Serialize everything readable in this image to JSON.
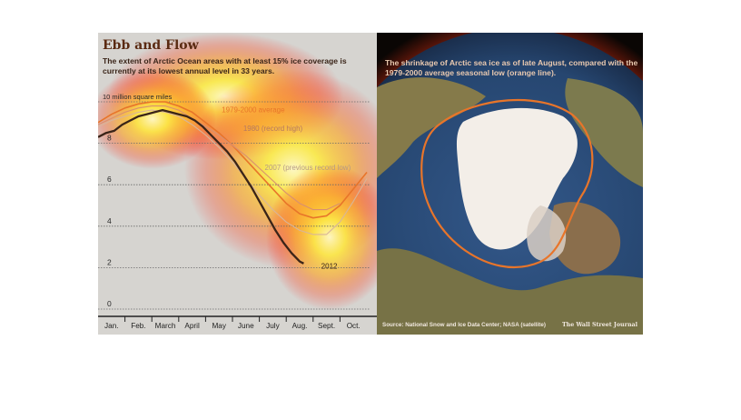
{
  "left": {
    "title": "Ebb and Flow",
    "subtitle": "The extent of Arctic Ocean areas with at least 15% ice coverage is currently at its lowest annual level in 33 years."
  },
  "right": {
    "caption": "The shrinkage of Arctic sea ice as of late August, compared with the 1979-2000 average seasonal low (orange line).",
    "source": "Source: National Snow and Ice Data Center; NASA (satellite)",
    "credit": "The Wall Street Journal"
  },
  "colors": {
    "avg_1979_2000": "#e8752a",
    "y1980": "#d99070",
    "y2007": "#d8b59a",
    "y2012": "#3a2418",
    "grid": "#6a6a6a",
    "ocean": "#2e4f78",
    "ice": "#f3eee8",
    "land": "#7e7a4c"
  },
  "chart_data": {
    "type": "line",
    "title": "Ebb and Flow",
    "subtitle": "The extent of Arctic Ocean areas with at least 15% ice coverage is currently at its lowest annual level in 33 years.",
    "xlabel": "",
    "ylabel": "",
    "unit_label": "10 million square miles",
    "ylim": [
      0,
      10
    ],
    "yticks": [
      0,
      2,
      4,
      6,
      8
    ],
    "xlim": [
      0,
      10
    ],
    "months": [
      "Jan.",
      "Feb.",
      "March",
      "April",
      "May",
      "June",
      "July",
      "Aug.",
      "Sept.",
      "Oct."
    ],
    "grid": true,
    "series": [
      {
        "name": "1979-2000 average",
        "x": [
          0,
          0.5,
          1,
          1.5,
          2,
          2.5,
          3,
          3.5,
          4,
          4.5,
          5,
          5.5,
          6,
          6.5,
          7,
          7.5,
          8,
          8.5,
          9,
          9.5,
          10
        ],
        "y": [
          9.0,
          9.4,
          9.7,
          9.9,
          10.0,
          10.0,
          9.8,
          9.5,
          9.0,
          8.5,
          7.9,
          7.2,
          6.5,
          5.8,
          5.1,
          4.6,
          4.4,
          4.5,
          5.0,
          5.8,
          6.6
        ]
      },
      {
        "name": "1980 (record high)",
        "x": [
          0,
          0.5,
          1,
          1.5,
          2,
          2.5,
          3,
          3.5,
          4,
          4.5,
          5,
          5.5,
          6,
          6.5,
          7,
          7.5,
          8,
          8.5,
          9
        ],
        "y": [
          8.9,
          9.2,
          9.5,
          9.7,
          9.8,
          9.8,
          9.6,
          9.2,
          8.8,
          8.4,
          7.9,
          7.4,
          6.8,
          6.2,
          5.6,
          5.1,
          4.8,
          4.8,
          5.1
        ]
      },
      {
        "name": "2007 (previous record low)",
        "x": [
          0,
          0.5,
          1,
          1.5,
          2,
          2.5,
          3,
          3.5,
          4,
          4.5,
          5,
          5.5,
          6,
          6.5,
          7,
          7.5,
          8,
          8.5,
          9,
          9.5,
          10
        ],
        "y": [
          8.8,
          9.1,
          9.3,
          9.5,
          9.6,
          9.5,
          9.3,
          8.9,
          8.4,
          7.8,
          7.1,
          6.3,
          5.5,
          4.8,
          4.2,
          3.8,
          3.6,
          3.6,
          4.2,
          5.2,
          6.3
        ]
      },
      {
        "name": "2012",
        "x": [
          0,
          0.3,
          0.6,
          0.9,
          1.2,
          1.5,
          1.8,
          2.1,
          2.4,
          2.7,
          3.0,
          3.3,
          3.6,
          3.9,
          4.2,
          4.5,
          4.8,
          5.1,
          5.4,
          5.7,
          6.0,
          6.3,
          6.6,
          6.9,
          7.2,
          7.5,
          7.65
        ],
        "y": [
          8.3,
          8.5,
          8.6,
          8.9,
          9.1,
          9.3,
          9.4,
          9.5,
          9.6,
          9.5,
          9.4,
          9.3,
          9.1,
          8.8,
          8.4,
          8.0,
          7.6,
          7.1,
          6.5,
          5.9,
          5.2,
          4.5,
          3.8,
          3.2,
          2.7,
          2.3,
          2.2
        ]
      }
    ]
  }
}
